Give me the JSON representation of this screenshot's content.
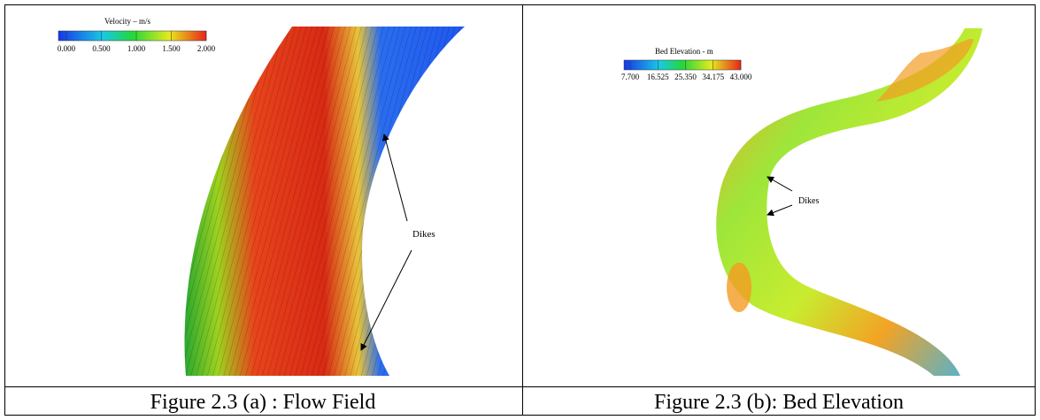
{
  "figure_a": {
    "legend_title": "Velocity – m/s",
    "legend_ticks": [
      "0.000",
      "0.500",
      "1.000",
      "1.500",
      "2.000"
    ],
    "annotation": "Dikes",
    "caption": "Figure 2.3 (a) : Flow Field"
  },
  "figure_b": {
    "legend_title": "Bed Elevation - m",
    "legend_ticks": [
      "7.700",
      "16.525",
      "25.350",
      "34.175",
      "43.000"
    ],
    "annotation": "Dikes",
    "caption": "Figure 2.3 (b): Bed Elevation"
  }
}
